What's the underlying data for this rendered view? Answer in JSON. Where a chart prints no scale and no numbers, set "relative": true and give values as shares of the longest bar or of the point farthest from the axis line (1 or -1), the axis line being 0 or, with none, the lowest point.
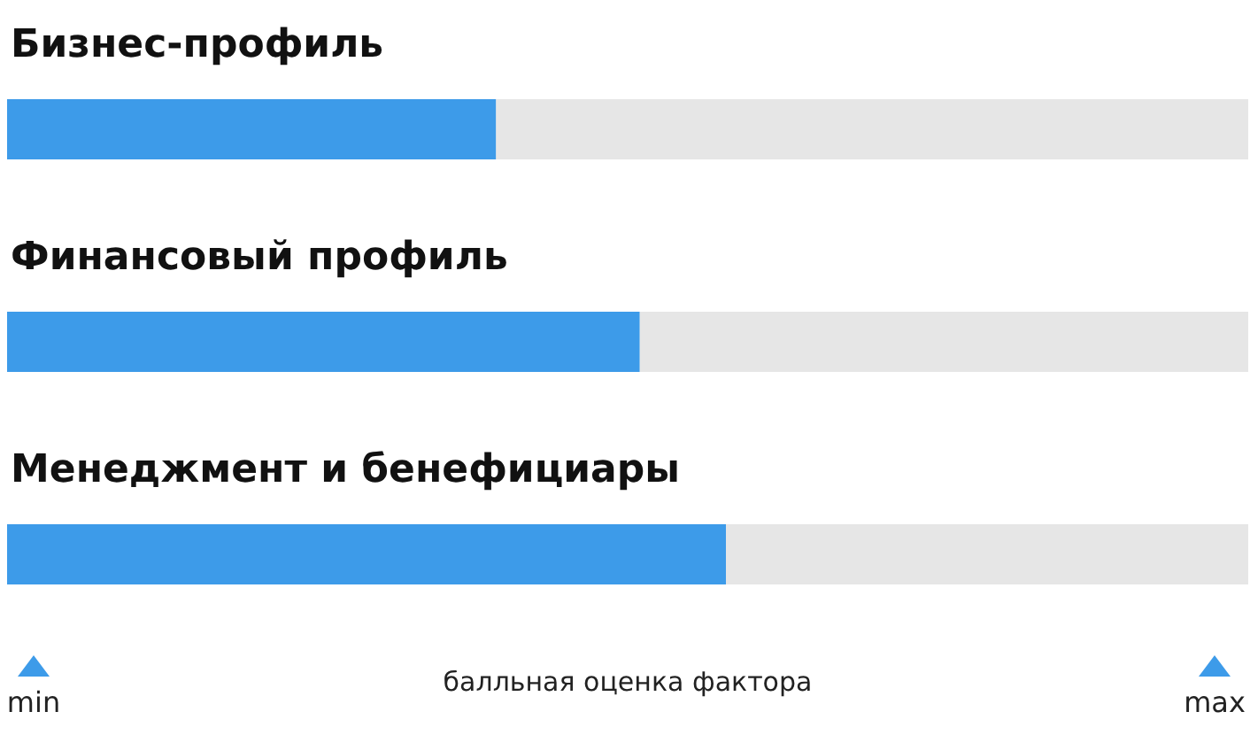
{
  "chart_data": {
    "type": "bar",
    "orientation": "horizontal",
    "relative": true,
    "categories": [
      "Бизнес-профиль",
      "Финансовый профиль",
      "Менеджмент и бенефициары"
    ],
    "values": [
      0.68,
      0.88,
      1
    ],
    "color": "#3d9be9",
    "xlabel": "балльная оценка фактора",
    "annotations": [
      "min",
      "max"
    ]
  }
}
